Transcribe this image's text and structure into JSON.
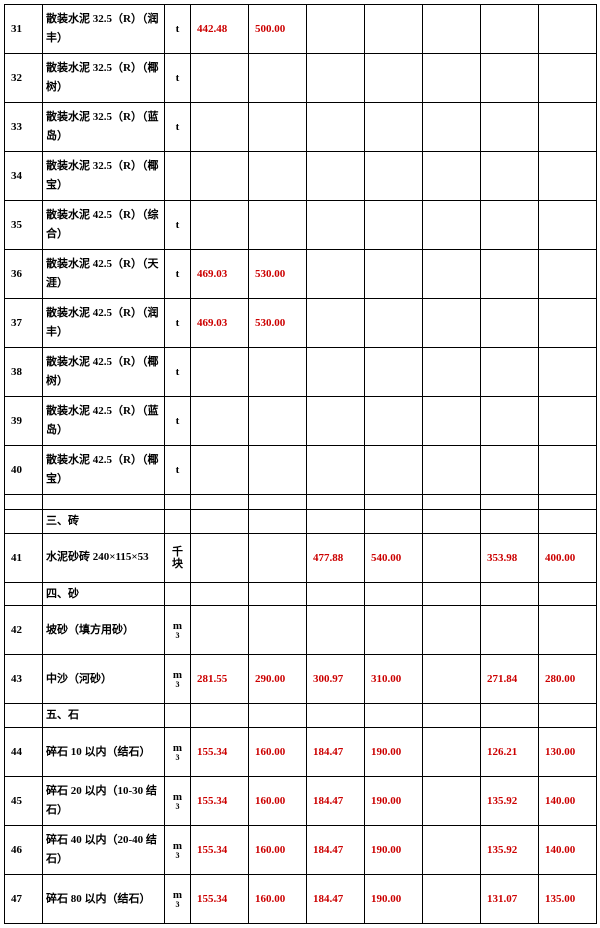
{
  "colors": {
    "value": "#cc0000",
    "text": "#000000",
    "border": "#000000",
    "bg": "#ffffff"
  },
  "unit_t": "t",
  "unit_qk1": "千",
  "unit_qk2": "块",
  "unit_m": "m",
  "unit_m_sub": "3",
  "sections": {
    "s3": "三、砖",
    "s4": "四、砂",
    "s5": "五、石"
  },
  "rows": {
    "r31": {
      "idx": "31",
      "name": "散装水泥 32.5（R）（润丰）",
      "unit": "t",
      "v": [
        "442.48",
        "500.00",
        "",
        "",
        "",
        "",
        ""
      ]
    },
    "r32": {
      "idx": "32",
      "name": "散装水泥 32.5（R）（椰树）",
      "unit": "t",
      "v": [
        "",
        "",
        "",
        "",
        "",
        "",
        ""
      ]
    },
    "r33": {
      "idx": "33",
      "name": "散装水泥 32.5（R）（蓝岛）",
      "unit": "t",
      "v": [
        "",
        "",
        "",
        "",
        "",
        "",
        ""
      ]
    },
    "r34": {
      "idx": "34",
      "name": "散装水泥 32.5（R）（椰宝）",
      "unit": "",
      "v": [
        "",
        "",
        "",
        "",
        "",
        "",
        ""
      ]
    },
    "r35": {
      "idx": "35",
      "name": "散装水泥 42.5（R）（综合）",
      "unit": "t",
      "v": [
        "",
        "",
        "",
        "",
        "",
        "",
        ""
      ]
    },
    "r36": {
      "idx": "36",
      "name": "散装水泥 42.5（R）（天涯）",
      "unit": "t",
      "v": [
        "469.03",
        "530.00",
        "",
        "",
        "",
        "",
        ""
      ]
    },
    "r37": {
      "idx": "37",
      "name": "散装水泥 42.5（R）（润丰）",
      "unit": "t",
      "v": [
        "469.03",
        "530.00",
        "",
        "",
        "",
        "",
        ""
      ]
    },
    "r38": {
      "idx": "38",
      "name": "散装水泥 42.5（R）（椰树）",
      "unit": "t",
      "v": [
        "",
        "",
        "",
        "",
        "",
        "",
        ""
      ]
    },
    "r39": {
      "idx": "39",
      "name": "散装水泥 42.5（R）（蓝岛）",
      "unit": "t",
      "v": [
        "",
        "",
        "",
        "",
        "",
        "",
        ""
      ]
    },
    "r40": {
      "idx": "40",
      "name": "散装水泥 42.5（R）（椰宝）",
      "unit": "t",
      "v": [
        "",
        "",
        "",
        "",
        "",
        "",
        ""
      ]
    },
    "r41": {
      "idx": "41",
      "name": "水泥砂砖  240×115×53",
      "unit": "qk",
      "v": [
        "",
        "",
        "477.88",
        "540.00",
        "",
        "353.98",
        "400.00"
      ]
    },
    "r42": {
      "idx": "42",
      "name": "坡砂（填方用砂）",
      "unit": "m3",
      "v": [
        "",
        "",
        "",
        "",
        "",
        "",
        ""
      ]
    },
    "r43": {
      "idx": "43",
      "name": "中沙（河砂）",
      "unit": "m3",
      "v": [
        "281.55",
        "290.00",
        "300.97",
        "310.00",
        "",
        "271.84",
        "280.00"
      ]
    },
    "r44": {
      "idx": "44",
      "name": "碎石 10 以内（结石）",
      "unit": "m3",
      "v": [
        "155.34",
        "160.00",
        "184.47",
        "190.00",
        "",
        "126.21",
        "130.00"
      ]
    },
    "r45": {
      "idx": "45",
      "name": "碎石 20 以内（10-30 结石）",
      "unit": "m3",
      "v": [
        "155.34",
        "160.00",
        "184.47",
        "190.00",
        "",
        "135.92",
        "140.00"
      ]
    },
    "r46": {
      "idx": "46",
      "name": "碎石 40 以内（20-40 结石）",
      "unit": "m3",
      "v": [
        "155.34",
        "160.00",
        "184.47",
        "190.00",
        "",
        "135.92",
        "140.00"
      ]
    },
    "r47": {
      "idx": "47",
      "name": "碎石 80 以内（结石）",
      "unit": "m3",
      "v": [
        "155.34",
        "160.00",
        "184.47",
        "190.00",
        "",
        "131.07",
        "135.00"
      ]
    }
  }
}
